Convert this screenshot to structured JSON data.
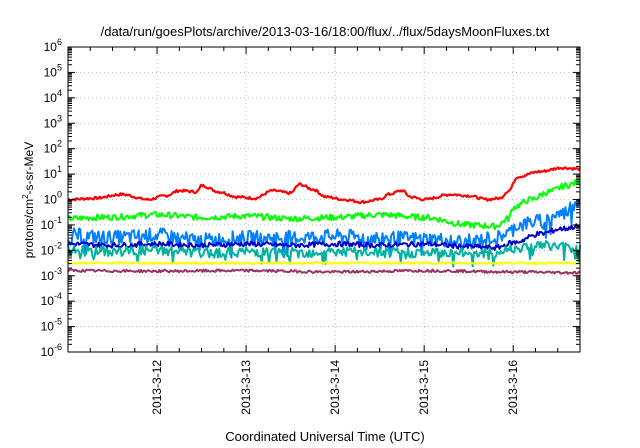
{
  "chart_data": {
    "type": "line",
    "title": "/data/run/goesPlots/archive/2013-03-16/18:00/flux/../flux/5daysMoonFluxes.txt",
    "xlabel": "Coordinated Universal Time (UTC)",
    "ylabel": {
      "base": "protons/cm",
      "sup": "2",
      "rest": "-s-sr-MeV"
    },
    "y_scale": "log",
    "ylim_exponents": [
      -6,
      6
    ],
    "y_tick_exponents": [
      -6,
      -5,
      -4,
      -3,
      -2,
      -1,
      0,
      1,
      2,
      3,
      4,
      5,
      6
    ],
    "y_tick_base": "10",
    "xlim_days": [
      0,
      5.75
    ],
    "x_ticks": [
      {
        "label": "2013-3-12",
        "day": 1
      },
      {
        "label": "2013-3-13",
        "day": 2
      },
      {
        "label": "2013-3-14",
        "day": 3
      },
      {
        "label": "2013-3-15",
        "day": 4
      },
      {
        "label": "2013-3-16",
        "day": 5
      }
    ],
    "grid": true,
    "noise_seed": 7,
    "series": [
      {
        "color": "#ff0000",
        "noise": 0.05,
        "knots": [
          [
            0,
            0.0
          ],
          [
            0.3,
            0.05
          ],
          [
            0.6,
            0.2
          ],
          [
            0.9,
            0.0
          ],
          [
            1.1,
            0.15
          ],
          [
            1.25,
            0.35
          ],
          [
            1.45,
            0.3
          ],
          [
            1.5,
            0.55
          ],
          [
            1.7,
            0.3
          ],
          [
            1.9,
            0.1
          ],
          [
            2.1,
            0.05
          ],
          [
            2.3,
            0.35
          ],
          [
            2.5,
            0.25
          ],
          [
            2.6,
            0.6
          ],
          [
            2.75,
            0.4
          ],
          [
            2.9,
            0.1
          ],
          [
            3.1,
            0.0
          ],
          [
            3.3,
            -0.1
          ],
          [
            3.5,
            0.0
          ],
          [
            3.6,
            0.2
          ],
          [
            3.75,
            0.35
          ],
          [
            3.85,
            0.1
          ],
          [
            4.0,
            0.0
          ],
          [
            4.3,
            0.2
          ],
          [
            4.5,
            0.15
          ],
          [
            4.7,
            0.0
          ],
          [
            4.85,
            0.05
          ],
          [
            4.95,
            0.35
          ],
          [
            5.05,
            0.9
          ],
          [
            5.3,
            1.1
          ],
          [
            5.55,
            1.25
          ],
          [
            5.75,
            1.2
          ]
        ]
      },
      {
        "color": "#00ff00",
        "noise": 0.12,
        "knots": [
          [
            0,
            -0.75
          ],
          [
            0.4,
            -0.7
          ],
          [
            1.0,
            -0.6
          ],
          [
            1.5,
            -0.7
          ],
          [
            2.0,
            -0.65
          ],
          [
            2.5,
            -0.75
          ],
          [
            3.0,
            -0.7
          ],
          [
            3.5,
            -0.6
          ],
          [
            4.0,
            -0.7
          ],
          [
            4.5,
            -1.0
          ],
          [
            4.8,
            -1.05
          ],
          [
            4.95,
            -0.75
          ],
          [
            5.0,
            -0.3
          ],
          [
            5.2,
            0.0
          ],
          [
            5.4,
            0.3
          ],
          [
            5.6,
            0.55
          ],
          [
            5.75,
            0.7
          ]
        ]
      },
      {
        "color": "#0080ff",
        "noise": 0.28,
        "knots": [
          [
            0,
            -1.4
          ],
          [
            0.5,
            -1.5
          ],
          [
            1.0,
            -1.4
          ],
          [
            1.5,
            -1.6
          ],
          [
            2.0,
            -1.5
          ],
          [
            2.5,
            -1.5
          ],
          [
            3.0,
            -1.45
          ],
          [
            3.5,
            -1.5
          ],
          [
            4.0,
            -1.55
          ],
          [
            4.5,
            -1.65
          ],
          [
            4.8,
            -1.5
          ],
          [
            4.95,
            -1.3
          ],
          [
            5.05,
            -1.0
          ],
          [
            5.3,
            -0.85
          ],
          [
            5.55,
            -0.55
          ],
          [
            5.75,
            -0.0
          ]
        ]
      },
      {
        "color": "#0000cc",
        "noise": 0.1,
        "knots": [
          [
            0,
            -1.75
          ],
          [
            0.5,
            -1.8
          ],
          [
            1.0,
            -1.75
          ],
          [
            1.5,
            -1.8
          ],
          [
            2.0,
            -1.75
          ],
          [
            2.5,
            -1.8
          ],
          [
            3.0,
            -1.75
          ],
          [
            3.5,
            -1.8
          ],
          [
            4.0,
            -1.75
          ],
          [
            4.5,
            -1.85
          ],
          [
            4.8,
            -1.9
          ],
          [
            5.0,
            -1.7
          ],
          [
            5.3,
            -1.35
          ],
          [
            5.55,
            -1.15
          ],
          [
            5.75,
            -1.05
          ]
        ]
      },
      {
        "color": "#00b3a0",
        "noise": 0.2,
        "knots": [
          [
            0,
            -2.0
          ],
          [
            0.5,
            -2.05
          ],
          [
            1.0,
            -2.0
          ],
          [
            1.5,
            -2.1
          ],
          [
            2.0,
            -2.05
          ],
          [
            2.5,
            -2.1
          ],
          [
            3.0,
            -2.05
          ],
          [
            3.5,
            -2.1
          ],
          [
            4.0,
            -2.1
          ],
          [
            4.5,
            -2.1
          ],
          [
            4.8,
            -2.1
          ],
          [
            5.0,
            -1.9
          ],
          [
            5.3,
            -1.8
          ],
          [
            5.55,
            -1.85
          ],
          [
            5.75,
            -1.95
          ]
        ]
      },
      {
        "color": "#ffff00",
        "noise": 0.04,
        "knots": [
          [
            0,
            -2.5
          ],
          [
            1.0,
            -2.5
          ],
          [
            2.0,
            -2.5
          ],
          [
            3.0,
            -2.5
          ],
          [
            4.0,
            -2.5
          ],
          [
            5.0,
            -2.5
          ],
          [
            5.75,
            -2.5
          ]
        ]
      },
      {
        "color": "#993366",
        "noise": 0.05,
        "knots": [
          [
            0,
            -2.8
          ],
          [
            1.0,
            -2.82
          ],
          [
            2.0,
            -2.8
          ],
          [
            3.0,
            -2.85
          ],
          [
            4.0,
            -2.8
          ],
          [
            5.0,
            -2.85
          ],
          [
            5.75,
            -2.88
          ]
        ]
      }
    ]
  }
}
